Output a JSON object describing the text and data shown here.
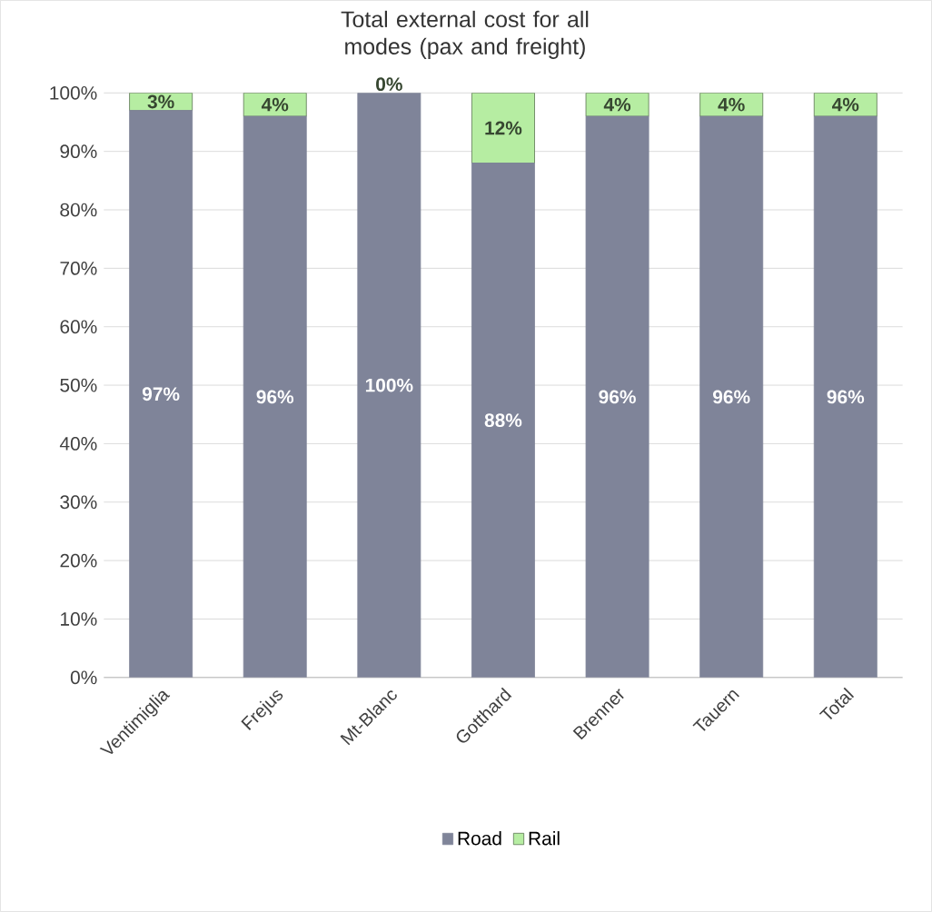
{
  "chart_data": {
    "type": "bar",
    "title": "Total external cost for all modes (pax and freight)",
    "categories": [
      "Ventimiglia",
      "Frejus",
      "Mt-Blanc",
      "Gotthard",
      "Brenner",
      "Tauern",
      "Total"
    ],
    "series": [
      {
        "name": "Road",
        "color": "#7f8499",
        "values": [
          97,
          96,
          100,
          88,
          96,
          96,
          96
        ],
        "value_labels": [
          "97%",
          "96%",
          "100%",
          "88%",
          "96%",
          "96%",
          "96%"
        ]
      },
      {
        "name": "Rail",
        "color": "#b6eda2",
        "values": [
          3,
          4,
          0,
          12,
          4,
          4,
          4
        ],
        "value_labels": [
          "3%",
          "4%",
          "0%",
          "12%",
          "4%",
          "4%",
          "4%"
        ]
      }
    ],
    "stacked": true,
    "ylim": [
      0,
      100
    ],
    "yticks": [
      {
        "value": 0,
        "label": "0%"
      },
      {
        "value": 10,
        "label": "10%"
      },
      {
        "value": 20,
        "label": "20%"
      },
      {
        "value": 30,
        "label": "30%"
      },
      {
        "value": 40,
        "label": "40%"
      },
      {
        "value": 50,
        "label": "50%"
      },
      {
        "value": 60,
        "label": "60%"
      },
      {
        "value": 70,
        "label": "70%"
      },
      {
        "value": 80,
        "label": "80%"
      },
      {
        "value": 90,
        "label": "90%"
      },
      {
        "value": 100,
        "label": "100%"
      }
    ],
    "grid": true,
    "legend": "bottom"
  }
}
